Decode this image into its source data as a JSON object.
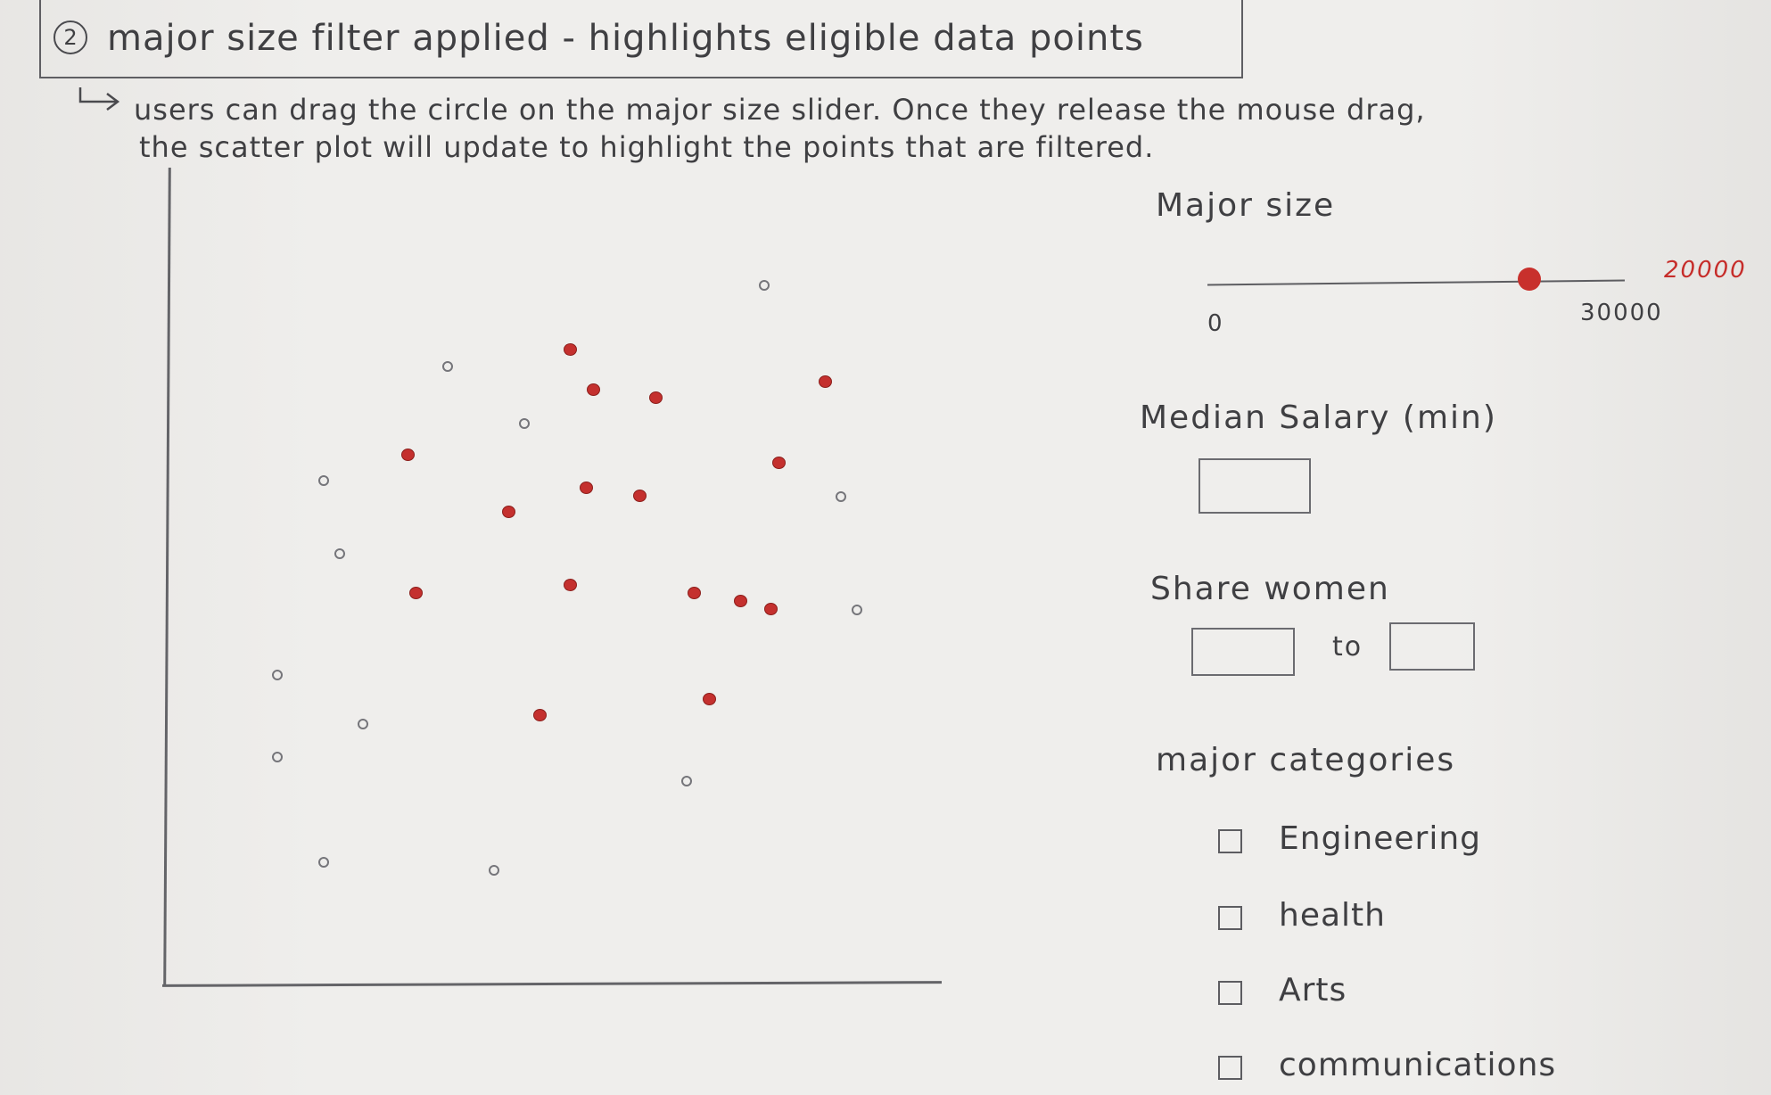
{
  "title": {
    "number": "2",
    "text": "major size filter applied - highlights eligible data points"
  },
  "note": {
    "line1": "users can drag the circle on the major size slider. Once they release the mouse drag,",
    "line2": "the scatter plot will update to highlight the points that are filtered."
  },
  "filters": {
    "major_size": {
      "label": "Major size",
      "min_label": "0",
      "max_label": "30000",
      "current_label": "20000",
      "min": 0,
      "max": 30000,
      "value": 20000
    },
    "median_salary": {
      "label": "Median Salary (min)",
      "value": ""
    },
    "share_women": {
      "label": "Share women",
      "from": "",
      "to_label": "to",
      "to": ""
    },
    "major_categories": {
      "label": "major categories",
      "items": [
        {
          "label": "Engineering",
          "checked": false
        },
        {
          "label": "health",
          "checked": false
        },
        {
          "label": "Arts",
          "checked": false
        },
        {
          "label": "communications",
          "checked": false
        }
      ]
    }
  },
  "colors": {
    "highlight": "#c4302e",
    "ink": "#3f3f42"
  },
  "chart_data": {
    "type": "scatter",
    "title": "",
    "xlabel": "",
    "ylabel": "",
    "xlim": [
      0,
      100
    ],
    "ylim": [
      0,
      100
    ],
    "series": [
      {
        "highlighted": true,
        "points": [
          [
            52,
            78
          ],
          [
            55,
            73
          ],
          [
            63,
            72
          ],
          [
            85,
            74
          ],
          [
            31,
            65
          ],
          [
            79,
            64
          ],
          [
            54,
            61
          ],
          [
            61,
            60
          ],
          [
            44,
            58
          ],
          [
            52,
            49
          ],
          [
            68,
            48
          ],
          [
            74,
            47
          ],
          [
            78,
            46
          ],
          [
            32,
            48
          ],
          [
            48,
            33
          ],
          [
            70,
            35
          ]
        ]
      },
      {
        "highlighted": false,
        "points": [
          [
            77,
            86
          ],
          [
            36,
            76
          ],
          [
            46,
            69
          ],
          [
            20,
            62
          ],
          [
            87,
            60
          ],
          [
            22,
            53
          ],
          [
            89,
            46
          ],
          [
            14,
            38
          ],
          [
            25,
            32
          ],
          [
            14,
            28
          ],
          [
            67,
            25
          ],
          [
            20,
            15
          ],
          [
            42,
            14
          ]
        ]
      }
    ]
  }
}
